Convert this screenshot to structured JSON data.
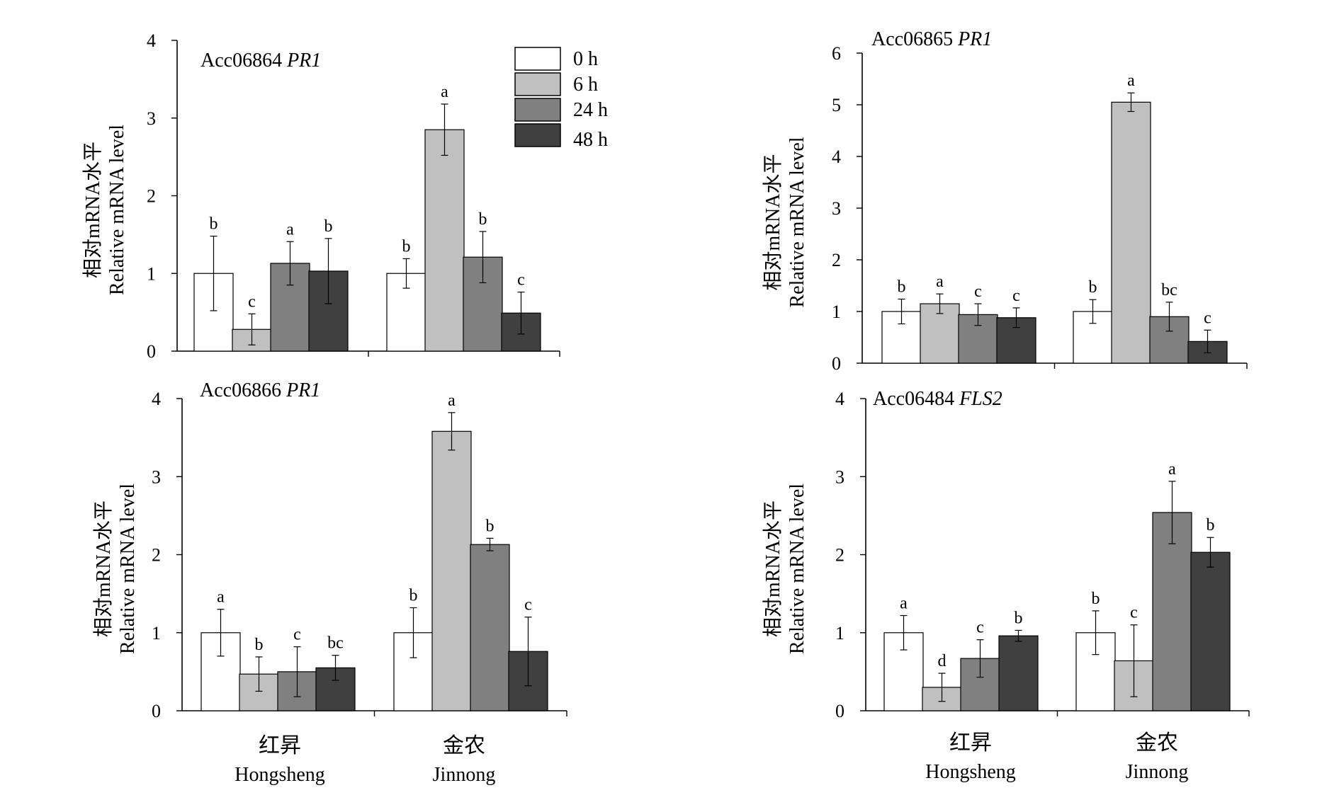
{
  "legend": [
    {
      "label": "0 h",
      "color": "#ffffff"
    },
    {
      "label": "6 h",
      "color": "#c0c0c0"
    },
    {
      "label": "24 h",
      "color": "#808080"
    },
    {
      "label": "48 h",
      "color": "#404040"
    }
  ],
  "y_axis_label_cn": "相对mRNA水平",
  "y_axis_label_en": "Relative mRNA level",
  "groups": [
    {
      "cn": "红昇",
      "en": "Hongsheng"
    },
    {
      "cn": "金农",
      "en": "Jinnong"
    }
  ],
  "chart_data": [
    {
      "type": "bar",
      "title_id": "Acc06864",
      "title_gene": "PR1",
      "categories": [
        "红昇 Hongsheng",
        "金农 Jinnong"
      ],
      "ylim": [
        0,
        4
      ],
      "yticks": [
        "0",
        "1",
        "2",
        "3",
        "4"
      ],
      "series": [
        {
          "name": "0 h",
          "values": [
            1.0,
            1.0
          ],
          "errors": [
            0.48,
            0.19
          ],
          "letters": [
            "b",
            "b"
          ]
        },
        {
          "name": "6 h",
          "values": [
            0.28,
            2.85
          ],
          "errors": [
            0.2,
            0.33
          ],
          "letters": [
            "c",
            "a"
          ]
        },
        {
          "name": "24 h",
          "values": [
            1.13,
            1.21
          ],
          "errors": [
            0.28,
            0.33
          ],
          "letters": [
            "a",
            "b"
          ]
        },
        {
          "name": "48 h",
          "values": [
            1.03,
            0.49
          ],
          "errors": [
            0.42,
            0.27
          ],
          "letters": [
            "b",
            "c"
          ]
        }
      ]
    },
    {
      "type": "bar",
      "title_id": "Acc06865",
      "title_gene": "PR1",
      "categories": [
        "红昇 Hongsheng",
        "金农 Jinnong"
      ],
      "ylim": [
        0,
        6
      ],
      "yticks": [
        "0",
        "1",
        "2",
        "3",
        "4",
        "5",
        "6"
      ],
      "series": [
        {
          "name": "0 h",
          "values": [
            1.0,
            1.0
          ],
          "errors": [
            0.24,
            0.23
          ],
          "letters": [
            "b",
            "b"
          ]
        },
        {
          "name": "6 h",
          "values": [
            1.15,
            5.05
          ],
          "errors": [
            0.19,
            0.18
          ],
          "letters": [
            "a",
            "a"
          ]
        },
        {
          "name": "24 h",
          "values": [
            0.94,
            0.9
          ],
          "errors": [
            0.21,
            0.28
          ],
          "letters": [
            "c",
            "bc"
          ]
        },
        {
          "name": "48 h",
          "values": [
            0.88,
            0.42
          ],
          "errors": [
            0.19,
            0.22
          ],
          "letters": [
            "c",
            "c"
          ]
        }
      ]
    },
    {
      "type": "bar",
      "title_id": "Acc06866",
      "title_gene": "PR1",
      "categories": [
        "红昇 Hongsheng",
        "金农 Jinnong"
      ],
      "ylim": [
        0,
        4
      ],
      "yticks": [
        "0",
        "1",
        "2",
        "3",
        "4"
      ],
      "series": [
        {
          "name": "0 h",
          "values": [
            1.0,
            1.0
          ],
          "errors": [
            0.3,
            0.32
          ],
          "letters": [
            "a",
            "b"
          ]
        },
        {
          "name": "6 h",
          "values": [
            0.47,
            3.58
          ],
          "errors": [
            0.22,
            0.24
          ],
          "letters": [
            "b",
            "a"
          ]
        },
        {
          "name": "24 h",
          "values": [
            0.5,
            2.13
          ],
          "errors": [
            0.32,
            0.08
          ],
          "letters": [
            "c",
            "b"
          ]
        },
        {
          "name": "48 h",
          "values": [
            0.55,
            0.76
          ],
          "errors": [
            0.16,
            0.44
          ],
          "letters": [
            "bc",
            "c"
          ]
        }
      ]
    },
    {
      "type": "bar",
      "title_id": "Acc06484",
      "title_gene": "FLS2",
      "categories": [
        "红昇 Hongsheng",
        "金农 Jinnong"
      ],
      "ylim": [
        0,
        4
      ],
      "yticks": [
        "0",
        "1",
        "2",
        "3",
        "4"
      ],
      "series": [
        {
          "name": "0 h",
          "values": [
            1.0,
            1.0
          ],
          "errors": [
            0.22,
            0.28
          ],
          "letters": [
            "a",
            "b"
          ]
        },
        {
          "name": "6 h",
          "values": [
            0.3,
            0.64
          ],
          "errors": [
            0.18,
            0.46
          ],
          "letters": [
            "d",
            "c"
          ]
        },
        {
          "name": "24 h",
          "values": [
            0.67,
            2.54
          ],
          "errors": [
            0.24,
            0.4
          ],
          "letters": [
            "c",
            "a"
          ]
        },
        {
          "name": "48 h",
          "values": [
            0.96,
            2.03
          ],
          "errors": [
            0.07,
            0.19
          ],
          "letters": [
            "b",
            "b"
          ]
        }
      ]
    }
  ]
}
